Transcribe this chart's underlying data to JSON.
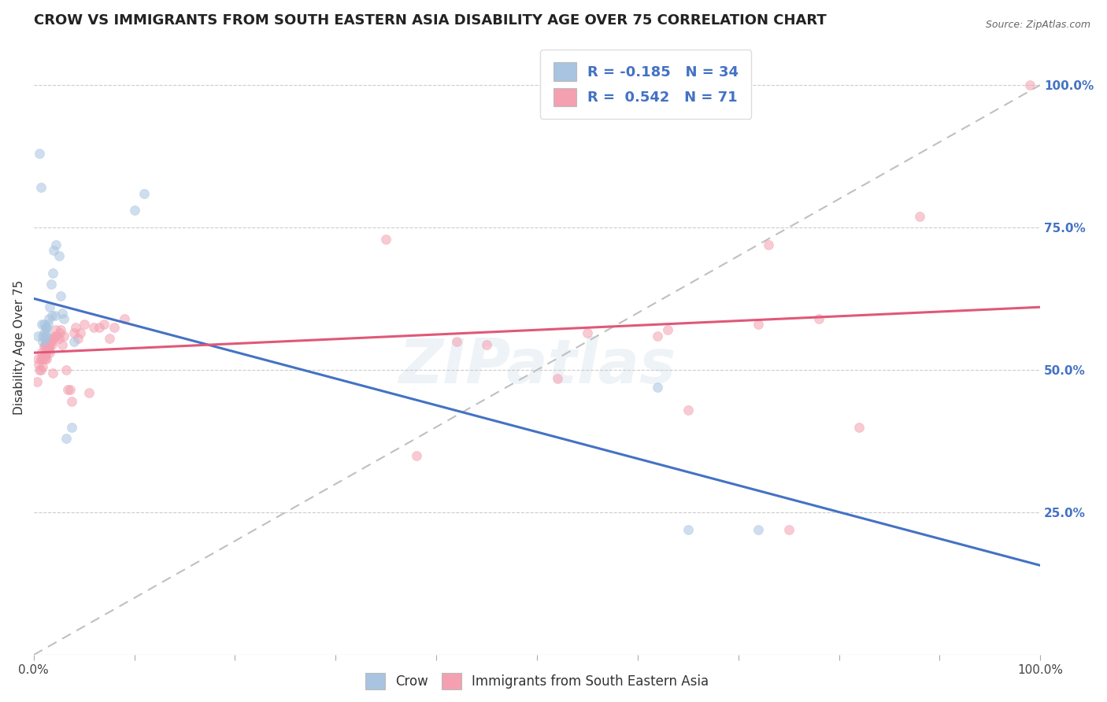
{
  "title": "CROW VS IMMIGRANTS FROM SOUTH EASTERN ASIA DISABILITY AGE OVER 75 CORRELATION CHART",
  "source": "Source: ZipAtlas.com",
  "ylabel": "Disability Age Over 75",
  "watermark": "ZIPatlas",
  "legend_label1": "Crow",
  "legend_label2": "Immigrants from South Eastern Asia",
  "r1": -0.185,
  "n1": 34,
  "r2": 0.542,
  "n2": 71,
  "crow_color": "#a8c4e0",
  "immigrant_color": "#f4a0b0",
  "trendline1_color": "#4472c4",
  "trendline2_color": "#e05878",
  "dashed_line_color": "#c0c0c0",
  "background_color": "#ffffff",
  "grid_color": "#cccccc",
  "crow_x": [
    0.004,
    0.006,
    0.007,
    0.008,
    0.009,
    0.009,
    0.01,
    0.01,
    0.011,
    0.012,
    0.012,
    0.013,
    0.013,
    0.014,
    0.015,
    0.016,
    0.017,
    0.018,
    0.019,
    0.02,
    0.021,
    0.022,
    0.025,
    0.027,
    0.028,
    0.03,
    0.032,
    0.038,
    0.04,
    0.1,
    0.11,
    0.62,
    0.65,
    0.72
  ],
  "crow_y": [
    0.56,
    0.88,
    0.82,
    0.58,
    0.55,
    0.56,
    0.565,
    0.58,
    0.555,
    0.56,
    0.575,
    0.565,
    0.575,
    0.58,
    0.59,
    0.61,
    0.65,
    0.595,
    0.67,
    0.71,
    0.595,
    0.72,
    0.7,
    0.63,
    0.6,
    0.59,
    0.38,
    0.4,
    0.55,
    0.78,
    0.81,
    0.47,
    0.22,
    0.22
  ],
  "immigrant_x": [
    0.003,
    0.004,
    0.005,
    0.006,
    0.007,
    0.007,
    0.008,
    0.008,
    0.009,
    0.009,
    0.01,
    0.01,
    0.011,
    0.011,
    0.012,
    0.012,
    0.013,
    0.013,
    0.013,
    0.014,
    0.014,
    0.015,
    0.015,
    0.016,
    0.016,
    0.016,
    0.017,
    0.018,
    0.018,
    0.019,
    0.02,
    0.021,
    0.022,
    0.023,
    0.025,
    0.026,
    0.027,
    0.028,
    0.03,
    0.032,
    0.034,
    0.036,
    0.038,
    0.04,
    0.042,
    0.044,
    0.046,
    0.05,
    0.055,
    0.06,
    0.065,
    0.07,
    0.075,
    0.08,
    0.09,
    0.35,
    0.38,
    0.42,
    0.45,
    0.52,
    0.55,
    0.62,
    0.63,
    0.65,
    0.72,
    0.73,
    0.75,
    0.78,
    0.82,
    0.88,
    0.99
  ],
  "immigrant_y": [
    0.48,
    0.52,
    0.51,
    0.5,
    0.52,
    0.5,
    0.52,
    0.53,
    0.52,
    0.505,
    0.525,
    0.54,
    0.52,
    0.545,
    0.525,
    0.545,
    0.535,
    0.55,
    0.52,
    0.545,
    0.55,
    0.54,
    0.535,
    0.55,
    0.53,
    0.545,
    0.555,
    0.55,
    0.545,
    0.495,
    0.555,
    0.56,
    0.57,
    0.56,
    0.555,
    0.565,
    0.57,
    0.545,
    0.56,
    0.5,
    0.465,
    0.465,
    0.445,
    0.565,
    0.575,
    0.555,
    0.565,
    0.58,
    0.46,
    0.575,
    0.575,
    0.58,
    0.555,
    0.575,
    0.59,
    0.73,
    0.35,
    0.55,
    0.545,
    0.485,
    0.565,
    0.56,
    0.57,
    0.43,
    0.58,
    0.72,
    0.22,
    0.59,
    0.4,
    0.77,
    1.0
  ],
  "xlim": [
    0.0,
    1.0
  ],
  "ylim": [
    0.0,
    1.08
  ],
  "xtick_positions": [
    0.0,
    0.1,
    0.2,
    0.3,
    0.4,
    0.5,
    0.6,
    0.7,
    0.8,
    0.9,
    1.0
  ],
  "xtick_labels_show": {
    "0.0": "0.0%",
    "1.0": "100.0%"
  },
  "yticks_right": [
    0.25,
    0.5,
    0.75,
    1.0
  ],
  "yticklabels_right": [
    "25.0%",
    "50.0%",
    "75.0%",
    "100.0%"
  ],
  "title_fontsize": 13,
  "axis_label_fontsize": 11,
  "tick_fontsize": 11,
  "marker_size": 75,
  "marker_alpha": 0.55
}
